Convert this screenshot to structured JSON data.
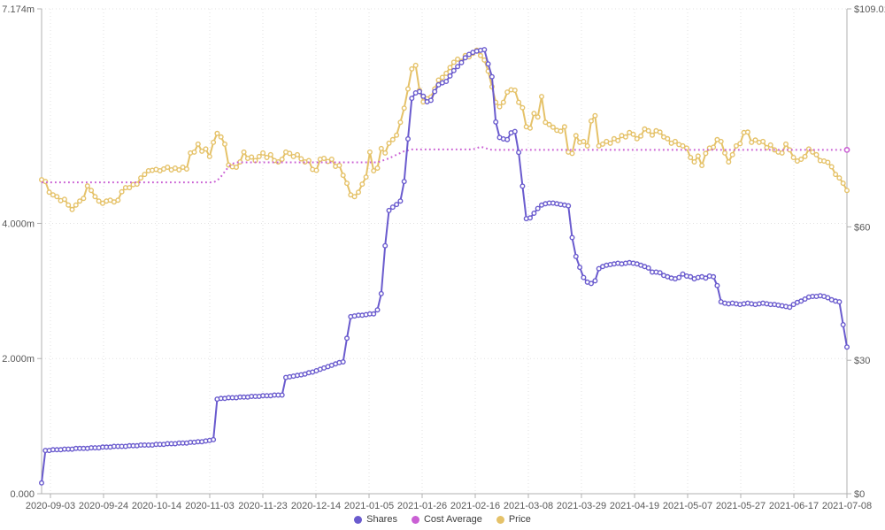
{
  "chart_data": {
    "type": "line",
    "title": "",
    "legend_position": "bottom-center",
    "grid": true,
    "x_tick_labels": [
      "2020-09-03",
      "2020-09-24",
      "2020-10-14",
      "2020-11-03",
      "2020-11-23",
      "2020-12-14",
      "2021-01-05",
      "2021-01-26",
      "2021-02-16",
      "2021-03-08",
      "2021-03-29",
      "2021-04-19",
      "2021-05-07",
      "2021-05-27",
      "2021-06-17",
      "2021-07-08"
    ],
    "y_left": {
      "max": 7.174,
      "min": 0,
      "unit": "shares (millions)",
      "ticks": [
        {
          "value": 7.174,
          "label": "7.174m"
        },
        {
          "value": 4.0,
          "label": "4.000m"
        },
        {
          "value": 2.0,
          "label": "2.000m"
        },
        {
          "value": 0.0,
          "label": "0.000"
        }
      ]
    },
    "y_right": {
      "max": 109.01,
      "min": 0,
      "unit": "USD",
      "ticks": [
        {
          "value": 109.01,
          "label": "$109.01"
        },
        {
          "value": 60,
          "label": "$60"
        },
        {
          "value": 30,
          "label": "$30"
        },
        {
          "value": 0,
          "label": "$0"
        }
      ]
    },
    "series": [
      {
        "name": "Shares",
        "axis": "left",
        "unit": "millions",
        "color": "#6a5bce",
        "style": "line-with-markers",
        "values": [
          0.16,
          0.64,
          0.64,
          0.65,
          0.65,
          0.65,
          0.66,
          0.66,
          0.66,
          0.67,
          0.67,
          0.67,
          0.67,
          0.68,
          0.68,
          0.68,
          0.69,
          0.69,
          0.69,
          0.7,
          0.7,
          0.7,
          0.7,
          0.71,
          0.71,
          0.71,
          0.72,
          0.72,
          0.72,
          0.72,
          0.73,
          0.73,
          0.73,
          0.74,
          0.74,
          0.74,
          0.75,
          0.75,
          0.75,
          0.76,
          0.76,
          0.77,
          0.77,
          0.78,
          0.79,
          0.8,
          1.4,
          1.41,
          1.41,
          1.42,
          1.42,
          1.42,
          1.43,
          1.43,
          1.43,
          1.44,
          1.44,
          1.44,
          1.45,
          1.45,
          1.45,
          1.46,
          1.46,
          1.46,
          1.72,
          1.73,
          1.74,
          1.75,
          1.76,
          1.77,
          1.79,
          1.8,
          1.82,
          1.84,
          1.86,
          1.88,
          1.9,
          1.92,
          1.94,
          1.95,
          2.3,
          2.62,
          2.63,
          2.64,
          2.64,
          2.65,
          2.66,
          2.66,
          2.72,
          2.96,
          3.67,
          4.19,
          4.24,
          4.28,
          4.33,
          4.62,
          5.25,
          5.85,
          5.93,
          5.95,
          5.88,
          5.8,
          5.82,
          5.95,
          6.05,
          6.08,
          6.1,
          6.18,
          6.26,
          6.32,
          6.38,
          6.45,
          6.5,
          6.53,
          6.55,
          6.56,
          6.57,
          6.36,
          6.17,
          5.5,
          5.27,
          5.25,
          5.24,
          5.34,
          5.36,
          5.05,
          4.55,
          4.07,
          4.08,
          4.15,
          4.22,
          4.27,
          4.29,
          4.3,
          4.3,
          4.29,
          4.28,
          4.27,
          4.26,
          3.79,
          3.51,
          3.35,
          3.2,
          3.13,
          3.11,
          3.15,
          3.33,
          3.36,
          3.38,
          3.39,
          3.4,
          3.41,
          3.4,
          3.41,
          3.42,
          3.41,
          3.4,
          3.38,
          3.36,
          3.34,
          3.28,
          3.28,
          3.27,
          3.23,
          3.21,
          3.19,
          3.18,
          3.2,
          3.25,
          3.22,
          3.21,
          3.18,
          3.2,
          3.21,
          3.19,
          3.22,
          3.21,
          3.08,
          2.84,
          2.82,
          2.81,
          2.82,
          2.81,
          2.8,
          2.81,
          2.82,
          2.81,
          2.8,
          2.81,
          2.82,
          2.81,
          2.8,
          2.8,
          2.79,
          2.78,
          2.77,
          2.76,
          2.8,
          2.83,
          2.85,
          2.88,
          2.91,
          2.92,
          2.92,
          2.93,
          2.92,
          2.9,
          2.87,
          2.85,
          2.84,
          2.5,
          2.17
        ]
      },
      {
        "name": "Cost Average",
        "axis": "right",
        "unit": "USD",
        "color": "#ca60d4",
        "style": "dotted",
        "values": [
          70.0,
          70.0,
          70.0,
          70.0,
          70.0,
          70.0,
          70.0,
          70.0,
          70.0,
          70.0,
          70.0,
          70.0,
          70.0,
          70.0,
          70.0,
          70.0,
          70.0,
          70.0,
          70.0,
          70.0,
          70.0,
          70.0,
          70.0,
          70.0,
          70.0,
          70.0,
          70.0,
          70.0,
          70.0,
          70.0,
          70.0,
          70.0,
          70.0,
          70.0,
          70.0,
          70.0,
          70.0,
          70.0,
          70.0,
          70.0,
          70.0,
          70.0,
          70.0,
          70.0,
          70.0,
          70.0,
          70.4,
          71.3,
          72.4,
          73.5,
          74.2,
          74.5,
          74.5,
          74.5,
          74.5,
          74.5,
          74.5,
          74.5,
          74.5,
          74.5,
          74.5,
          74.5,
          74.5,
          74.5,
          74.5,
          74.5,
          74.5,
          74.5,
          74.5,
          74.5,
          74.5,
          74.5,
          74.5,
          74.5,
          74.5,
          74.5,
          74.5,
          74.5,
          74.5,
          74.5,
          74.5,
          74.5,
          74.5,
          74.5,
          74.5,
          74.5,
          74.5,
          74.5,
          74.5,
          74.8,
          75.1,
          75.4,
          75.8,
          76.2,
          76.6,
          77.0,
          77.2,
          77.4,
          77.4,
          77.4,
          77.4,
          77.4,
          77.4,
          77.4,
          77.4,
          77.4,
          77.4,
          77.4,
          77.4,
          77.4,
          77.4,
          77.4,
          77.4,
          77.4,
          77.7,
          78.0,
          77.8,
          77.5,
          77.3,
          77.3,
          77.3,
          77.3,
          77.3,
          77.3,
          77.3,
          77.3,
          77.3,
          77.3,
          77.3,
          77.3,
          77.3,
          77.3,
          77.3,
          77.3,
          77.3,
          77.3,
          77.3,
          77.3,
          77.3,
          77.3,
          77.3,
          77.3,
          77.3,
          77.3,
          77.3,
          77.3,
          77.3,
          77.3,
          77.3,
          77.3,
          77.3,
          77.3,
          77.3,
          77.3,
          77.3,
          77.3,
          77.3,
          77.3,
          77.3,
          77.3,
          77.3,
          77.3,
          77.3,
          77.3,
          77.3,
          77.3,
          77.3,
          77.3,
          77.3,
          77.3,
          77.3,
          77.3,
          77.3,
          77.3,
          77.3,
          77.3,
          77.3,
          77.3,
          77.3,
          77.3,
          77.3,
          77.3,
          77.3,
          77.3,
          77.3,
          77.3,
          77.3,
          77.3,
          77.3,
          77.3,
          77.3,
          77.3,
          77.3,
          77.3,
          77.3,
          77.3,
          77.3,
          77.3,
          77.3,
          77.3,
          77.3,
          77.3,
          77.3,
          77.3,
          77.3,
          77.3,
          77.3,
          77.3,
          77.3,
          77.3,
          77.3,
          77.3
        ]
      },
      {
        "name": "Price",
        "axis": "right",
        "unit": "USD",
        "color": "#e5c269",
        "style": "line-with-markers",
        "values": [
          70.6,
          70.2,
          67.8,
          67.2,
          66.8,
          65.9,
          66.2,
          64.9,
          63.9,
          64.9,
          65.8,
          66.4,
          69.2,
          68.2,
          66.8,
          65.8,
          65.3,
          65.8,
          66.0,
          65.6,
          66.0,
          67.9,
          68.8,
          68.8,
          69.5,
          69.6,
          71.0,
          71.8,
          72.6,
          72.7,
          72.9,
          72.6,
          73.0,
          73.4,
          72.8,
          73.2,
          72.8,
          73.4,
          73.0,
          76.6,
          76.8,
          78.6,
          77.0,
          77.5,
          75.8,
          79.0,
          81.0,
          80.2,
          78.6,
          73.9,
          73.5,
          73.4,
          74.6,
          76.8,
          75.4,
          75.7,
          74.9,
          75.8,
          76.6,
          75.6,
          76.2,
          74.9,
          74.6,
          75.2,
          76.8,
          76.5,
          75.8,
          76.2,
          75.3,
          74.6,
          74.9,
          72.9,
          72.7,
          75.2,
          75.4,
          74.7,
          75.2,
          73.6,
          73.8,
          71.6,
          69.8,
          67.2,
          66.8,
          67.8,
          69.6,
          71.2,
          76.8,
          72.6,
          73.2,
          77.6,
          76.6,
          78.8,
          79.6,
          80.6,
          83.5,
          86.7,
          91.0,
          95.5,
          96.3,
          90.7,
          88.1,
          88.8,
          89.2,
          91.0,
          93.0,
          93.6,
          94.5,
          95.8,
          97.0,
          97.7,
          97.2,
          98.5,
          98.2,
          99.0,
          99.7,
          98.5,
          97.5,
          95.0,
          91.5,
          88.0,
          87.0,
          88.0,
          90.3,
          90.8,
          90.7,
          88.0,
          86.8,
          82.5,
          82.2,
          85.5,
          84.7,
          89.3,
          83.5,
          83.0,
          82.4,
          81.7,
          81.5,
          82.5,
          76.8,
          76.5,
          80.5,
          79.0,
          79.2,
          78.2,
          83.8,
          85.0,
          78.2,
          78.6,
          79.2,
          78.8,
          79.8,
          79.4,
          80.5,
          80.2,
          81.2,
          80.8,
          79.8,
          80.4,
          82.0,
          81.6,
          80.6,
          81.6,
          81.3,
          80.2,
          79.8,
          78.8,
          79.2,
          78.5,
          78.2,
          77.7,
          75.6,
          74.6,
          75.9,
          73.8,
          76.5,
          77.7,
          77.9,
          79.6,
          79.2,
          76.6,
          74.6,
          76.2,
          78.2,
          78.7,
          81.2,
          81.3,
          79.0,
          79.5,
          79.0,
          79.2,
          77.8,
          78.4,
          77.3,
          76.8,
          76.6,
          78.6,
          77.3,
          75.6,
          74.8,
          75.2,
          75.8,
          77.5,
          76.8,
          76.2,
          74.9,
          74.8,
          74.5,
          73.5,
          71.8,
          71.0,
          69.8,
          68.2
        ]
      }
    ],
    "colors": {
      "grid": "#e2e2e2",
      "axis": "#b0b0b0",
      "tick_text": "#595959",
      "background": "#ffffff"
    }
  }
}
